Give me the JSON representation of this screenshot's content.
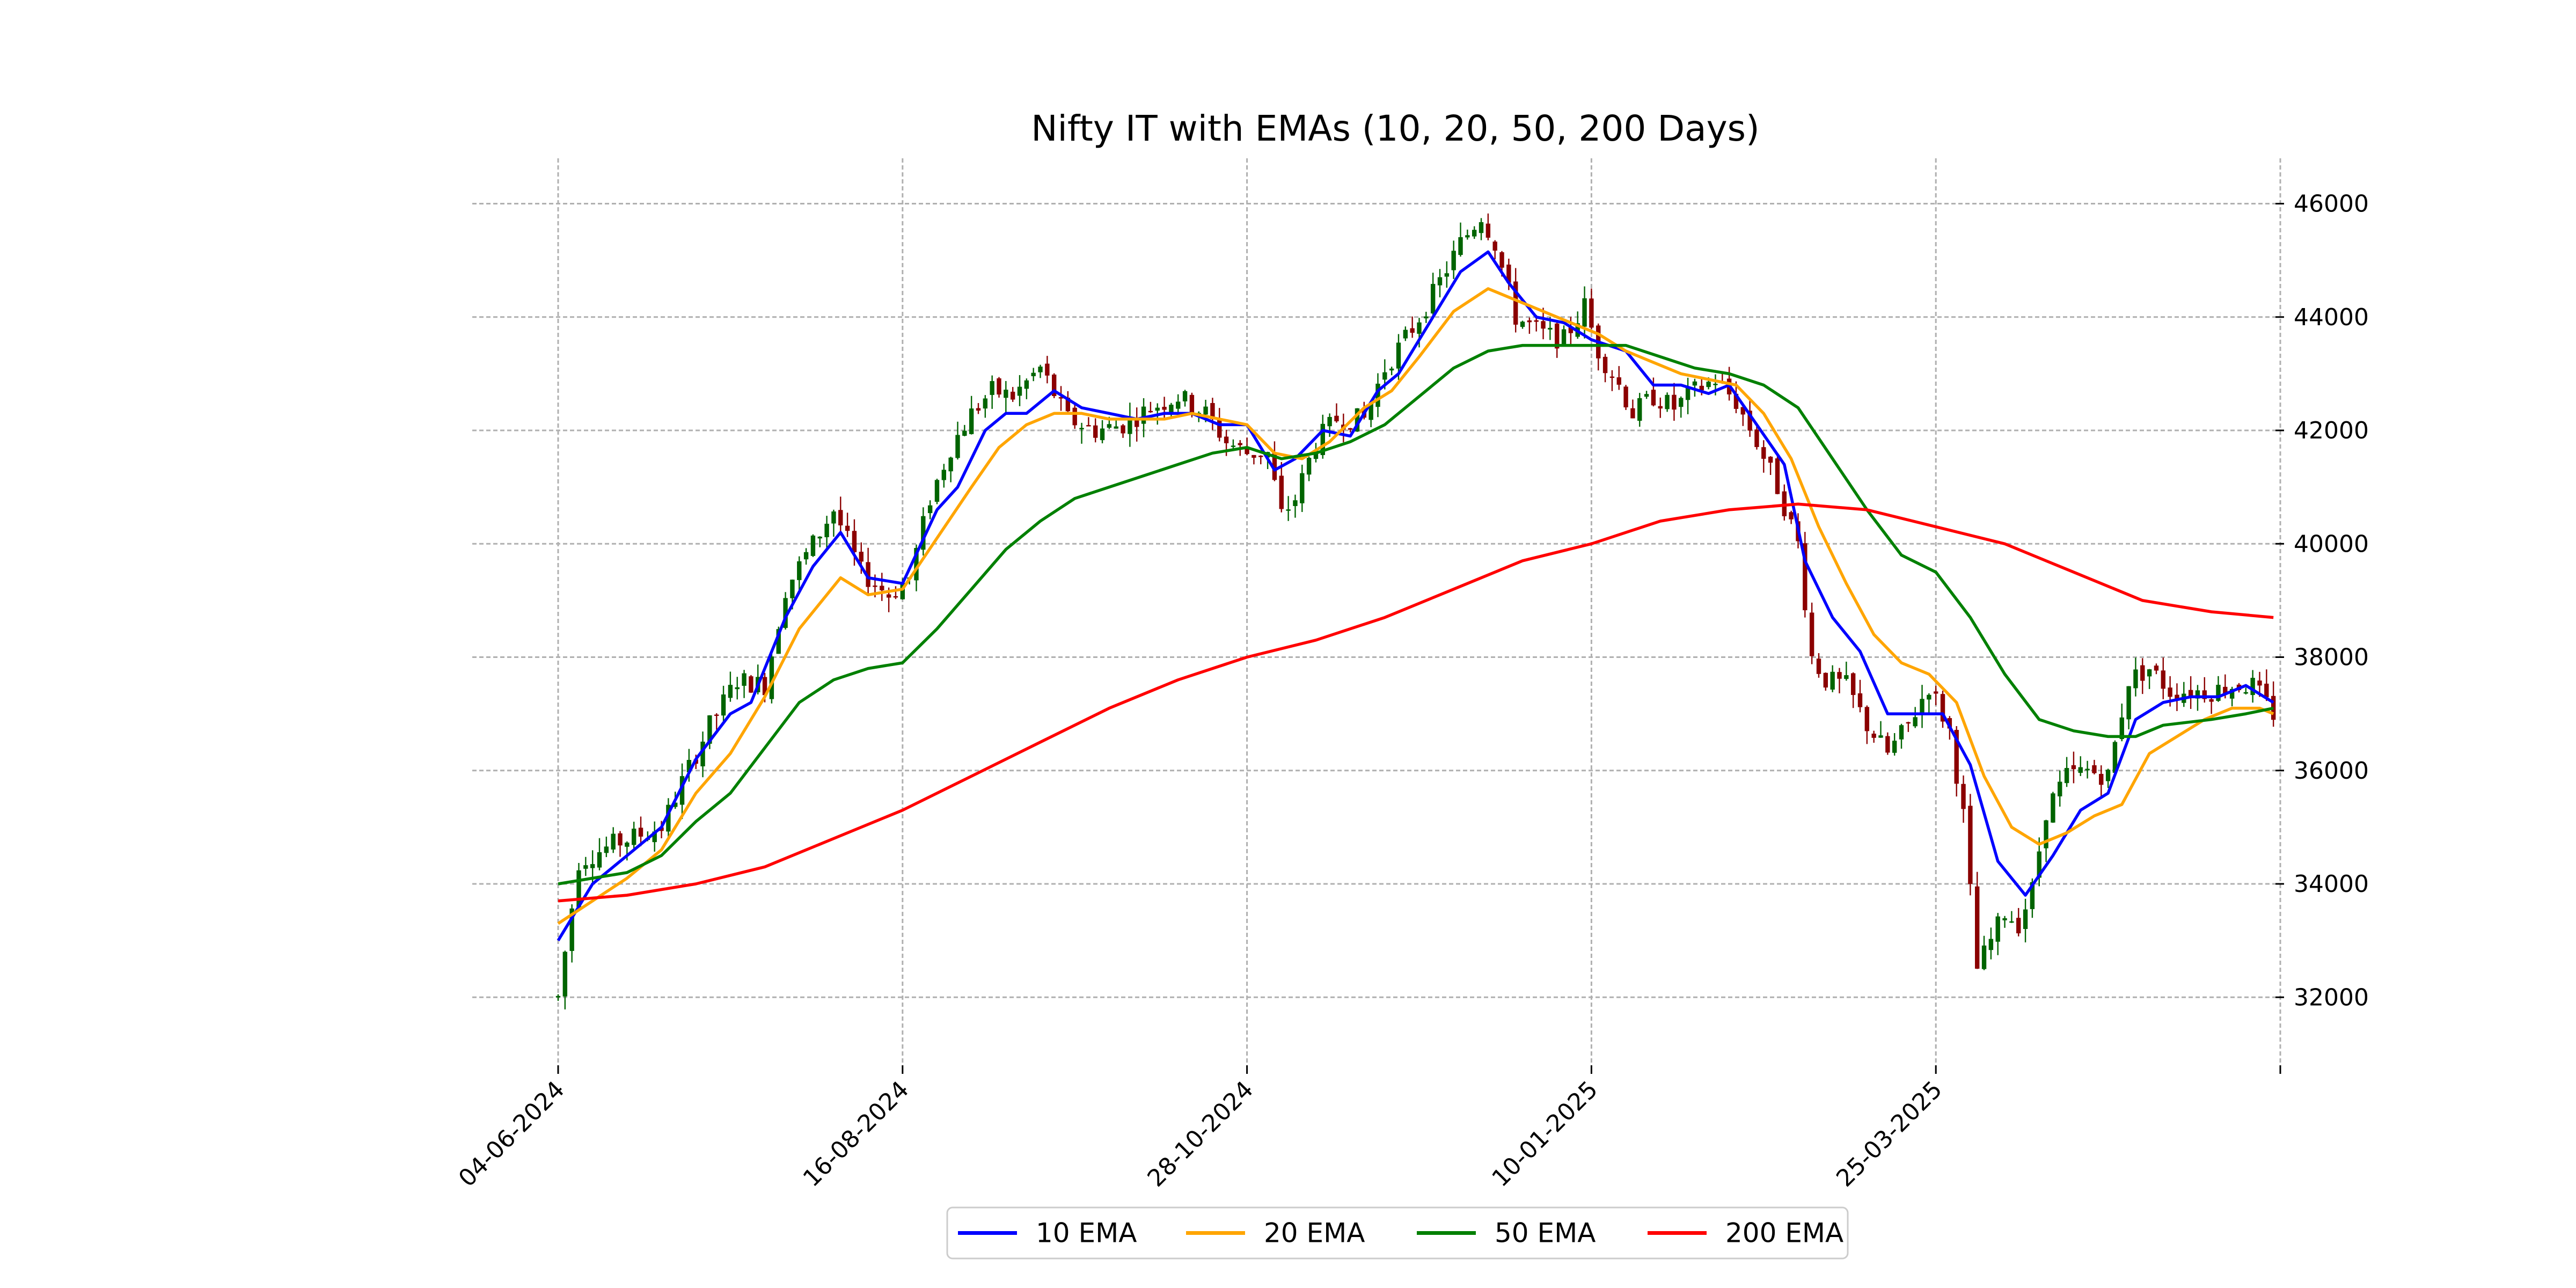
{
  "chart_data": {
    "type": "candlestick",
    "title": "Nifty IT with EMAs (10, 20, 50, 200 Days)",
    "xlabel": "",
    "ylabel": "",
    "ylim": [
      30800,
      46800
    ],
    "y_ticks": [
      32000,
      34000,
      36000,
      38000,
      40000,
      42000,
      44000,
      46000
    ],
    "y_tick_labels": [
      "32000",
      "34000",
      "36000",
      "38000",
      "40000",
      "42000",
      "44000",
      "46000"
    ],
    "x_tick_labels": [
      "04-06-2024",
      "16-08-2024",
      "28-10-2024",
      "10-01-2025",
      "25-03-2025",
      ""
    ],
    "x_tick_index": [
      0,
      50,
      100,
      150,
      200,
      250
    ],
    "grid": true,
    "legend_position": "bottom-center",
    "colors": {
      "up": "#006400",
      "down": "#8b0000",
      "ema10": "#0000ff",
      "ema20": "#ffa500",
      "ema50": "#008000",
      "ema200": "#ff0000"
    },
    "series": [
      {
        "name": "10 EMA",
        "key": "ema10",
        "points": [
          [
            0,
            33000
          ],
          [
            5,
            34000
          ],
          [
            10,
            34500
          ],
          [
            15,
            35000
          ],
          [
            20,
            36200
          ],
          [
            25,
            37000
          ],
          [
            28,
            37200
          ],
          [
            30,
            37800
          ],
          [
            33,
            38700
          ],
          [
            37,
            39600
          ],
          [
            41,
            40200
          ],
          [
            45,
            39400
          ],
          [
            50,
            39300
          ],
          [
            55,
            40600
          ],
          [
            58,
            41000
          ],
          [
            62,
            42000
          ],
          [
            65,
            42300
          ],
          [
            68,
            42300
          ],
          [
            72,
            42700
          ],
          [
            76,
            42400
          ],
          [
            80,
            42300
          ],
          [
            84,
            42200
          ],
          [
            88,
            42300
          ],
          [
            92,
            42300
          ],
          [
            96,
            42100
          ],
          [
            100,
            42100
          ],
          [
            104,
            41300
          ],
          [
            107,
            41500
          ],
          [
            111,
            42000
          ],
          [
            115,
            41900
          ],
          [
            119,
            42700
          ],
          [
            122,
            43000
          ],
          [
            126,
            43800
          ],
          [
            131,
            44800
          ],
          [
            135,
            45150
          ],
          [
            138,
            44600
          ],
          [
            142,
            44000
          ],
          [
            146,
            43900
          ],
          [
            150,
            43600
          ],
          [
            155,
            43400
          ],
          [
            159,
            42800
          ],
          [
            163,
            42800
          ],
          [
            167,
            42650
          ],
          [
            170,
            42800
          ],
          [
            174,
            42100
          ],
          [
            178,
            41400
          ],
          [
            181,
            39700
          ],
          [
            185,
            38700
          ],
          [
            189,
            38100
          ],
          [
            193,
            37000
          ],
          [
            197,
            37000
          ],
          [
            201,
            37000
          ],
          [
            205,
            36100
          ],
          [
            209,
            34400
          ],
          [
            213,
            33800
          ],
          [
            217,
            34500
          ],
          [
            221,
            35300
          ],
          [
            225,
            35600
          ],
          [
            229,
            36900
          ],
          [
            233,
            37200
          ],
          [
            237,
            37300
          ],
          [
            241,
            37300
          ],
          [
            245,
            37500
          ],
          [
            249,
            37200
          ]
        ]
      },
      {
        "name": "20 EMA",
        "key": "ema20",
        "points": [
          [
            0,
            33300
          ],
          [
            5,
            33700
          ],
          [
            10,
            34100
          ],
          [
            15,
            34600
          ],
          [
            20,
            35600
          ],
          [
            25,
            36300
          ],
          [
            30,
            37300
          ],
          [
            35,
            38500
          ],
          [
            41,
            39400
          ],
          [
            45,
            39100
          ],
          [
            50,
            39200
          ],
          [
            55,
            40100
          ],
          [
            60,
            41000
          ],
          [
            64,
            41700
          ],
          [
            68,
            42100
          ],
          [
            72,
            42300
          ],
          [
            76,
            42300
          ],
          [
            80,
            42200
          ],
          [
            84,
            42200
          ],
          [
            88,
            42200
          ],
          [
            92,
            42300
          ],
          [
            96,
            42200
          ],
          [
            100,
            42100
          ],
          [
            104,
            41600
          ],
          [
            108,
            41500
          ],
          [
            112,
            41800
          ],
          [
            117,
            42400
          ],
          [
            121,
            42700
          ],
          [
            125,
            43300
          ],
          [
            130,
            44100
          ],
          [
            135,
            44500
          ],
          [
            139,
            44300
          ],
          [
            143,
            44100
          ],
          [
            147,
            43900
          ],
          [
            151,
            43700
          ],
          [
            155,
            43400
          ],
          [
            159,
            43200
          ],
          [
            163,
            43000
          ],
          [
            167,
            42900
          ],
          [
            171,
            42800
          ],
          [
            175,
            42300
          ],
          [
            179,
            41500
          ],
          [
            183,
            40300
          ],
          [
            187,
            39300
          ],
          [
            191,
            38400
          ],
          [
            195,
            37900
          ],
          [
            199,
            37700
          ],
          [
            203,
            37200
          ],
          [
            207,
            35900
          ],
          [
            211,
            35000
          ],
          [
            215,
            34700
          ],
          [
            219,
            34900
          ],
          [
            223,
            35200
          ],
          [
            227,
            35400
          ],
          [
            231,
            36300
          ],
          [
            235,
            36600
          ],
          [
            239,
            36900
          ],
          [
            243,
            37100
          ],
          [
            247,
            37100
          ],
          [
            249,
            37000
          ]
        ]
      },
      {
        "name": "50 EMA",
        "key": "ema50",
        "points": [
          [
            0,
            34000
          ],
          [
            5,
            34100
          ],
          [
            10,
            34200
          ],
          [
            15,
            34500
          ],
          [
            20,
            35100
          ],
          [
            25,
            35600
          ],
          [
            30,
            36400
          ],
          [
            35,
            37200
          ],
          [
            40,
            37600
          ],
          [
            45,
            37800
          ],
          [
            50,
            37900
          ],
          [
            55,
            38500
          ],
          [
            60,
            39200
          ],
          [
            65,
            39900
          ],
          [
            70,
            40400
          ],
          [
            75,
            40800
          ],
          [
            80,
            41000
          ],
          [
            85,
            41200
          ],
          [
            90,
            41400
          ],
          [
            95,
            41600
          ],
          [
            100,
            41700
          ],
          [
            105,
            41500
          ],
          [
            110,
            41600
          ],
          [
            115,
            41800
          ],
          [
            120,
            42100
          ],
          [
            125,
            42600
          ],
          [
            130,
            43100
          ],
          [
            135,
            43400
          ],
          [
            140,
            43500
          ],
          [
            145,
            43500
          ],
          [
            150,
            43500
          ],
          [
            155,
            43500
          ],
          [
            160,
            43300
          ],
          [
            165,
            43100
          ],
          [
            170,
            43000
          ],
          [
            175,
            42800
          ],
          [
            180,
            42400
          ],
          [
            185,
            41500
          ],
          [
            190,
            40600
          ],
          [
            195,
            39800
          ],
          [
            200,
            39500
          ],
          [
            205,
            38700
          ],
          [
            210,
            37700
          ],
          [
            215,
            36900
          ],
          [
            220,
            36700
          ],
          [
            225,
            36600
          ],
          [
            229,
            36600
          ],
          [
            233,
            36800
          ],
          [
            240,
            36900
          ],
          [
            245,
            37000
          ],
          [
            249,
            37100
          ]
        ]
      },
      {
        "name": "200 EMA",
        "key": "ema200",
        "points": [
          [
            0,
            33700
          ],
          [
            10,
            33800
          ],
          [
            20,
            34000
          ],
          [
            30,
            34300
          ],
          [
            40,
            34800
          ],
          [
            50,
            35300
          ],
          [
            60,
            35900
          ],
          [
            70,
            36500
          ],
          [
            80,
            37100
          ],
          [
            90,
            37600
          ],
          [
            100,
            38000
          ],
          [
            110,
            38300
          ],
          [
            120,
            38700
          ],
          [
            130,
            39200
          ],
          [
            140,
            39700
          ],
          [
            150,
            40000
          ],
          [
            160,
            40400
          ],
          [
            170,
            40600
          ],
          [
            180,
            40700
          ],
          [
            190,
            40600
          ],
          [
            200,
            40300
          ],
          [
            210,
            40000
          ],
          [
            220,
            39500
          ],
          [
            230,
            39000
          ],
          [
            240,
            38800
          ],
          [
            249,
            38700
          ]
        ]
      }
    ],
    "candles_trend": [
      [
        0,
        32000
      ],
      [
        3,
        34400
      ],
      [
        8,
        34700
      ],
      [
        15,
        35000
      ],
      [
        18,
        35800
      ],
      [
        22,
        36800
      ],
      [
        26,
        37600
      ],
      [
        30,
        37500
      ],
      [
        33,
        39200
      ],
      [
        37,
        40000
      ],
      [
        40,
        40600
      ],
      [
        44,
        39500
      ],
      [
        48,
        39100
      ],
      [
        51,
        39400
      ],
      [
        54,
        40800
      ],
      [
        57,
        41700
      ],
      [
        60,
        42300
      ],
      [
        63,
        42700
      ],
      [
        66,
        42600
      ],
      [
        70,
        43100
      ],
      [
        74,
        42200
      ],
      [
        78,
        42000
      ],
      [
        82,
        42100
      ],
      [
        86,
        42400
      ],
      [
        90,
        42600
      ],
      [
        94,
        42300
      ],
      [
        97,
        41800
      ],
      [
        100,
        41600
      ],
      [
        103,
        41600
      ],
      [
        105,
        40500
      ],
      [
        107,
        40800
      ],
      [
        110,
        41800
      ],
      [
        113,
        42200
      ],
      [
        117,
        42200
      ],
      [
        120,
        43100
      ],
      [
        124,
        43800
      ],
      [
        127,
        44400
      ],
      [
        131,
        45300
      ],
      [
        134,
        45800
      ],
      [
        136,
        45300
      ],
      [
        139,
        44000
      ],
      [
        143,
        43700
      ],
      [
        146,
        43600
      ],
      [
        149,
        44200
      ],
      [
        151,
        43400
      ],
      [
        154,
        42800
      ],
      [
        156,
        42300
      ],
      [
        159,
        42600
      ],
      [
        162,
        42400
      ],
      [
        165,
        42700
      ],
      [
        168,
        42900
      ],
      [
        171,
        42500
      ],
      [
        174,
        41800
      ],
      [
        177,
        41000
      ],
      [
        180,
        40000
      ],
      [
        182,
        38000
      ],
      [
        184,
        37600
      ],
      [
        187,
        37500
      ],
      [
        190,
        36800
      ],
      [
        193,
        36300
      ],
      [
        196,
        36800
      ],
      [
        199,
        37500
      ],
      [
        202,
        36700
      ],
      [
        204,
        35200
      ],
      [
        206,
        32500
      ],
      [
        208,
        33000
      ],
      [
        210,
        33500
      ],
      [
        212,
        33300
      ],
      [
        214,
        33900
      ],
      [
        216,
        35300
      ],
      [
        219,
        35900
      ],
      [
        222,
        36000
      ],
      [
        225,
        35900
      ],
      [
        228,
        37600
      ],
      [
        231,
        37800
      ],
      [
        234,
        37400
      ],
      [
        237,
        37400
      ],
      [
        240,
        37400
      ],
      [
        243,
        37500
      ],
      [
        246,
        37500
      ],
      [
        249,
        37000
      ]
    ]
  }
}
